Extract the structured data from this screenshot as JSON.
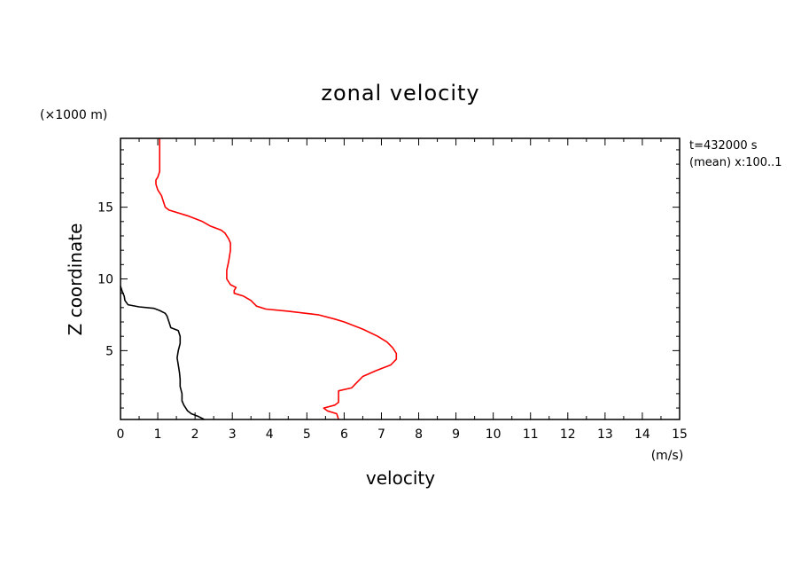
{
  "chart_data": {
    "type": "line",
    "title": "zonal velocity",
    "xlabel": "velocity",
    "xunit": "(m/s)",
    "ylabel": "Z coordinate",
    "yunit": "(×1000 m)",
    "annotation_lines": [
      "t=432000 s",
      "(mean) x:100..1"
    ],
    "xlim": [
      0,
      15
    ],
    "ylim": [
      0.2,
      19.8
    ],
    "xticks": [
      0,
      1,
      2,
      3,
      4,
      5,
      6,
      7,
      8,
      9,
      10,
      11,
      12,
      13,
      14,
      15
    ],
    "yticks": [
      5,
      10,
      15
    ],
    "grid": false,
    "series": [
      {
        "color": "#000000",
        "points": [
          [
            2.25,
            0.2
          ],
          [
            2.1,
            0.4
          ],
          [
            1.9,
            0.6
          ],
          [
            1.8,
            0.8
          ],
          [
            1.75,
            1.0
          ],
          [
            1.7,
            1.2
          ],
          [
            1.65,
            1.5
          ],
          [
            1.65,
            2.0
          ],
          [
            1.6,
            2.5
          ],
          [
            1.6,
            3.0
          ],
          [
            1.58,
            3.5
          ],
          [
            1.55,
            4.0
          ],
          [
            1.52,
            4.5
          ],
          [
            1.55,
            5.0
          ],
          [
            1.6,
            5.5
          ],
          [
            1.6,
            6.0
          ],
          [
            1.55,
            6.4
          ],
          [
            1.35,
            6.6
          ],
          [
            1.3,
            7.0
          ],
          [
            1.25,
            7.4
          ],
          [
            1.2,
            7.6
          ],
          [
            1.05,
            7.8
          ],
          [
            0.9,
            7.95
          ],
          [
            0.5,
            8.05
          ],
          [
            0.2,
            8.2
          ],
          [
            0.12,
            8.5
          ],
          [
            0.1,
            8.8
          ],
          [
            0.05,
            9.1
          ],
          [
            0.0,
            9.5
          ]
        ]
      },
      {
        "color": "#ff0000",
        "points": [
          [
            5.85,
            0.2
          ],
          [
            5.8,
            0.6
          ],
          [
            5.55,
            0.8
          ],
          [
            5.45,
            1.0
          ],
          [
            5.75,
            1.2
          ],
          [
            5.85,
            1.4
          ],
          [
            5.85,
            1.8
          ],
          [
            5.85,
            2.2
          ],
          [
            6.2,
            2.4
          ],
          [
            6.35,
            2.8
          ],
          [
            6.5,
            3.2
          ],
          [
            6.85,
            3.6
          ],
          [
            7.25,
            4.0
          ],
          [
            7.4,
            4.4
          ],
          [
            7.4,
            4.8
          ],
          [
            7.3,
            5.2
          ],
          [
            7.15,
            5.6
          ],
          [
            6.9,
            6.0
          ],
          [
            6.5,
            6.5
          ],
          [
            6.0,
            7.0
          ],
          [
            5.75,
            7.2
          ],
          [
            5.3,
            7.5
          ],
          [
            4.5,
            7.75
          ],
          [
            3.9,
            7.9
          ],
          [
            3.65,
            8.1
          ],
          [
            3.5,
            8.5
          ],
          [
            3.3,
            8.8
          ],
          [
            3.05,
            9.0
          ],
          [
            3.05,
            9.2
          ],
          [
            3.1,
            9.4
          ],
          [
            2.95,
            9.6
          ],
          [
            2.85,
            10.0
          ],
          [
            2.85,
            10.6
          ],
          [
            2.9,
            11.2
          ],
          [
            2.95,
            12.0
          ],
          [
            2.95,
            12.5
          ],
          [
            2.9,
            12.8
          ],
          [
            2.8,
            13.2
          ],
          [
            2.7,
            13.4
          ],
          [
            2.4,
            13.7
          ],
          [
            2.2,
            14.0
          ],
          [
            1.8,
            14.4
          ],
          [
            1.3,
            14.8
          ],
          [
            1.2,
            15.0
          ],
          [
            1.15,
            15.4
          ],
          [
            1.1,
            15.8
          ],
          [
            1.0,
            16.2
          ],
          [
            0.95,
            16.6
          ],
          [
            0.95,
            16.9
          ],
          [
            1.0,
            17.1
          ],
          [
            1.05,
            17.5
          ],
          [
            1.05,
            18.2
          ],
          [
            1.05,
            19.0
          ],
          [
            1.05,
            19.8
          ]
        ]
      }
    ]
  }
}
